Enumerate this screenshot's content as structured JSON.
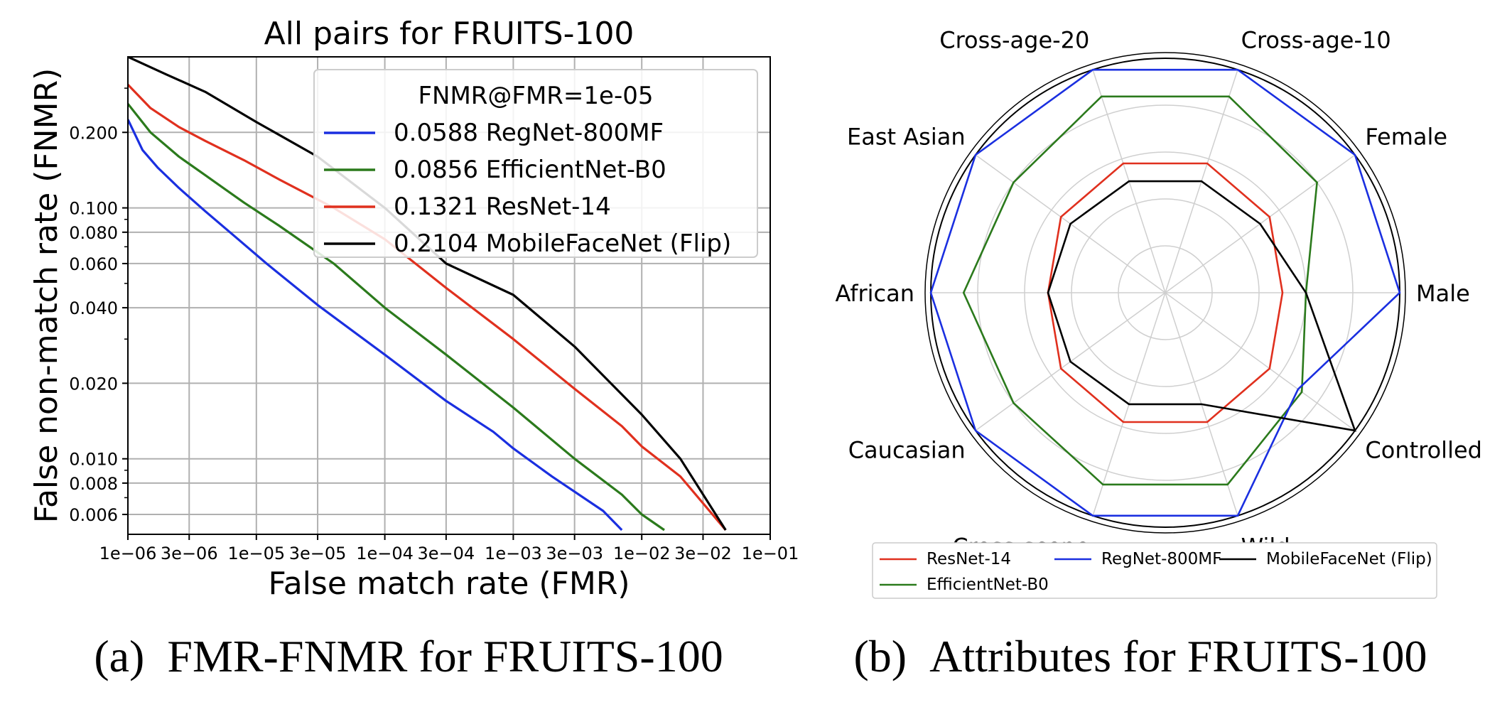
{
  "chart_data": [
    {
      "type": "line",
      "title": "All pairs for FRUITS-100",
      "xlabel": "False match rate (FMR)",
      "ylabel": "False non-match rate (FNMR)",
      "xscale": "log",
      "yscale": "log",
      "xlim": [
        1e-06,
        0.1
      ],
      "ylim": [
        0.005,
        0.4
      ],
      "grid": true,
      "x_ticks": [
        1e-06,
        3e-06,
        1e-05,
        3e-05,
        0.0001,
        0.0003,
        0.001,
        0.003,
        0.01,
        0.03,
        0.1
      ],
      "x_tick_labels": [
        "1e−06",
        "3e−06",
        "1e−05",
        "3e−05",
        "1e−04",
        "3e−04",
        "1e−03",
        "3e−03",
        "1e−02",
        "3e−02",
        "1e−01"
      ],
      "y_ticks": [
        0.2,
        0.1,
        0.08,
        0.06,
        0.04,
        0.02,
        0.01,
        0.008,
        0.006
      ],
      "y_tick_labels": [
        "0.200",
        "0.100",
        "0.080",
        "0.060",
        "0.040",
        "0.020",
        "0.010",
        "0.008",
        "0.006"
      ],
      "y_minor_ticks": [
        0.3,
        0.09,
        0.07,
        0.05,
        0.03,
        0.009,
        0.007
      ],
      "legend_title": "FNMR@FMR=1e-05",
      "legend_position": "top-right",
      "series": [
        {
          "name": "RegNet-800MF",
          "legend_label": "0.0588 RegNet-800MF",
          "color": "#1a2fe0",
          "x": [
            1e-06,
            1.3e-06,
            1.7e-06,
            2.5e-06,
            4e-06,
            7e-06,
            1.2e-05,
            3e-05,
            0.0001,
            0.0003,
            0.0007,
            0.001,
            0.002,
            0.005,
            0.007
          ],
          "y": [
            0.225,
            0.17,
            0.145,
            0.12,
            0.097,
            0.076,
            0.06,
            0.041,
            0.026,
            0.017,
            0.0128,
            0.011,
            0.0085,
            0.0062,
            0.0052
          ]
        },
        {
          "name": "EfficientNet-B0",
          "legend_label": "0.0856 EfficientNet-B0",
          "color": "#2b7a1c",
          "x": [
            1e-06,
            1.5e-06,
            2.5e-06,
            4e-06,
            8e-06,
            1.5e-05,
            4e-05,
            0.0001,
            0.0003,
            0.001,
            0.003,
            0.007,
            0.01,
            0.015
          ],
          "y": [
            0.26,
            0.2,
            0.16,
            0.135,
            0.105,
            0.085,
            0.06,
            0.04,
            0.026,
            0.016,
            0.01,
            0.0072,
            0.006,
            0.0052
          ]
        },
        {
          "name": "ResNet-14",
          "legend_label": "0.1321 ResNet-14",
          "color": "#e0301e",
          "x": [
            1e-06,
            1.5e-06,
            2.5e-06,
            4e-06,
            8e-06,
            1.5e-05,
            4e-05,
            0.0001,
            0.0003,
            0.001,
            0.003,
            0.007,
            0.01,
            0.02,
            0.045
          ],
          "y": [
            0.31,
            0.25,
            0.21,
            0.185,
            0.155,
            0.13,
            0.1,
            0.075,
            0.048,
            0.03,
            0.019,
            0.0135,
            0.0112,
            0.0085,
            0.0052
          ]
        },
        {
          "name": "MobileFaceNet (Flip)",
          "legend_label": "0.2104 MobileFaceNet (Flip)",
          "color": "#000000",
          "x": [
            1e-06,
            2e-06,
            4e-06,
            1e-05,
            3e-05,
            0.0001,
            0.0003,
            0.001,
            0.003,
            0.01,
            0.02,
            0.045
          ],
          "y": [
            0.4,
            0.34,
            0.29,
            0.22,
            0.16,
            0.1,
            0.06,
            0.045,
            0.028,
            0.015,
            0.01,
            0.0052
          ]
        }
      ]
    },
    {
      "type": "radar",
      "axes": [
        "Male",
        "Female",
        "Cross-age-10",
        "Cross-age-20",
        "East Asian",
        "African",
        "Caucasian",
        "Cross-scene",
        "Wild",
        "Controlled"
      ],
      "radial_range": [
        0,
        1
      ],
      "radial_grid": [
        0.2,
        0.4,
        0.6,
        0.8,
        1.0
      ],
      "legend_position": "bottom",
      "series": [
        {
          "name": "ResNet-14",
          "color": "#e0301e",
          "values": [
            0.5,
            0.55,
            0.58,
            0.58,
            0.55,
            0.5,
            0.55,
            0.58,
            0.58,
            0.55
          ]
        },
        {
          "name": "EfficientNet-B0",
          "color": "#2b7a1c",
          "values": [
            0.6,
            0.8,
            0.88,
            0.88,
            0.8,
            0.86,
            0.8,
            0.86,
            0.86,
            0.72
          ]
        },
        {
          "name": "RegNet-800MF",
          "color": "#1a2fe0",
          "values": [
            1.0,
            1.0,
            1.0,
            1.0,
            1.0,
            1.0,
            1.0,
            1.0,
            1.0,
            0.7
          ]
        },
        {
          "name": "MobileFaceNet (Flip)",
          "color": "#000000",
          "values": [
            0.6,
            0.5,
            0.5,
            0.5,
            0.5,
            0.5,
            0.5,
            0.5,
            0.5,
            1.0
          ]
        }
      ],
      "legend_order": [
        "ResNet-14",
        "RegNet-800MF",
        "MobileFaceNet (Flip)",
        "EfficientNet-B0"
      ]
    }
  ],
  "captions": {
    "a": "(a) FMR-FNMR for FRUITS-100",
    "b": "(b) Attributes for FRUITS-100"
  }
}
